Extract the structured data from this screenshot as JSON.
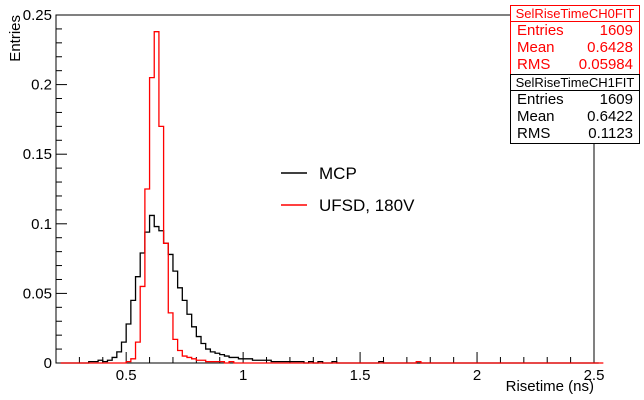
{
  "chart_data": {
    "type": "histogram",
    "xlabel": "Risetime (ns)",
    "ylabel": "Entries",
    "xlim": [
      0.2,
      2.5
    ],
    "ylim": [
      0,
      0.25
    ],
    "x_ticks": [
      "0.5",
      "1",
      "1.5",
      "2",
      "2.5"
    ],
    "y_ticks": [
      "0",
      "0.05",
      "0.1",
      "0.15",
      "0.2",
      "0.25"
    ],
    "bin_width": 0.02,
    "bin_start": 0.22,
    "legend": [
      "MCP",
      "UFSD, 180V"
    ],
    "series": [
      {
        "name": "MCP",
        "color": "#000000",
        "values": [
          0,
          0,
          0,
          0,
          0,
          0,
          0.001,
          0.001,
          0.002,
          0.001,
          0.002,
          0.004,
          0.008,
          0.015,
          0.028,
          0.045,
          0.062,
          0.079,
          0.094,
          0.106,
          0.098,
          0.095,
          0.086,
          0.078,
          0.066,
          0.054,
          0.045,
          0.035,
          0.026,
          0.019,
          0.014,
          0.01,
          0.008,
          0.007,
          0.006,
          0.005,
          0.004,
          0.004,
          0.003,
          0.003,
          0.003,
          0.002,
          0.002,
          0.002,
          0.002,
          0.001,
          0.001,
          0.001,
          0.001,
          0.001,
          0.001,
          0.001,
          0,
          0.001,
          0,
          0.001,
          0,
          0,
          0.001,
          0,
          0,
          0,
          0,
          0,
          0,
          0,
          0,
          0,
          0.001,
          0,
          0,
          0,
          0,
          0,
          0,
          0,
          0,
          0,
          0,
          0,
          0,
          0,
          0,
          0,
          0,
          0,
          0,
          0,
          0,
          0,
          0,
          0,
          0,
          0,
          0,
          0,
          0,
          0,
          0,
          0,
          0,
          0,
          0,
          0,
          0,
          0,
          0,
          0,
          0,
          0,
          0,
          0,
          0,
          0,
          0
        ]
      },
      {
        "name": "UFSD, 180V",
        "color": "#ff0000",
        "values": [
          0,
          0,
          0,
          0,
          0,
          0,
          0,
          0,
          0,
          0,
          0,
          0,
          0,
          0,
          0.001,
          0.003,
          0.015,
          0.055,
          0.125,
          0.205,
          0.238,
          0.17,
          0.086,
          0.036,
          0.017,
          0.009,
          0.005,
          0.004,
          0.003,
          0.002,
          0.002,
          0.001,
          0.001,
          0.001,
          0.001,
          0,
          0.001,
          0,
          0,
          0,
          0,
          0,
          0,
          0,
          0,
          0,
          0,
          0,
          0,
          0,
          0,
          0,
          0,
          0,
          0,
          0,
          0,
          0,
          0,
          0,
          0,
          0,
          0,
          0,
          0,
          0,
          0,
          0,
          0,
          0,
          0,
          0,
          0,
          0,
          0,
          0,
          0.001,
          0,
          0,
          0,
          0,
          0,
          0,
          0,
          0,
          0,
          0,
          0,
          0,
          0,
          0,
          0,
          0,
          0,
          0,
          0,
          0,
          0,
          0,
          0,
          0,
          0,
          0,
          0,
          0,
          0,
          0,
          0,
          0,
          0,
          0,
          0,
          0,
          0,
          0,
          0
        ]
      }
    ],
    "stats": [
      {
        "title": "SelRiseTimeCH0FIT",
        "color": "#ff0000",
        "rows": [
          {
            "label": "Entries",
            "value": "1609"
          },
          {
            "label": "Mean",
            "value": "0.6428"
          },
          {
            "label": "RMS",
            "value": "0.05984"
          }
        ]
      },
      {
        "title": "SelRiseTimeCH1FIT",
        "color": "#000000",
        "rows": [
          {
            "label": "Entries",
            "value": "1609"
          },
          {
            "label": "Mean",
            "value": "0.6422"
          },
          {
            "label": "RMS",
            "value": "0.1123"
          }
        ]
      }
    ]
  }
}
